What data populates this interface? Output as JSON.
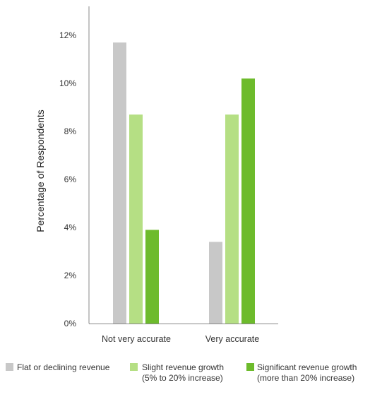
{
  "chart_data": {
    "type": "bar",
    "title": "",
    "xlabel": "",
    "ylabel": "Percentage of Respondents",
    "ylim": [
      0,
      13
    ],
    "yticks": [
      0,
      2,
      4,
      6,
      8,
      10,
      12
    ],
    "ytick_labels": [
      "0%",
      "2%",
      "4%",
      "6%",
      "8%",
      "10%",
      "12%"
    ],
    "grid": false,
    "legend_position": "bottom",
    "categories": [
      "Not very accurate",
      "Very accurate"
    ],
    "series": [
      {
        "name": "Flat or declining revenue",
        "legend_lines": [
          "Flat or declining revenue"
        ],
        "color": "#c8c8c8",
        "values": [
          11.7,
          3.4
        ]
      },
      {
        "name": "Slight revenue growth (5% to 20% increase)",
        "legend_lines": [
          "Slight revenue growth",
          "(5% to 20% increase)"
        ],
        "color": "#b5df84",
        "values": [
          8.7,
          8.7
        ]
      },
      {
        "name": "Significant revenue growth (more than 20% increase)",
        "legend_lines": [
          "Significant revenue growth",
          "(more than 20% increase)"
        ],
        "color": "#6dbb2c",
        "values": [
          3.9,
          10.2
        ]
      }
    ]
  }
}
